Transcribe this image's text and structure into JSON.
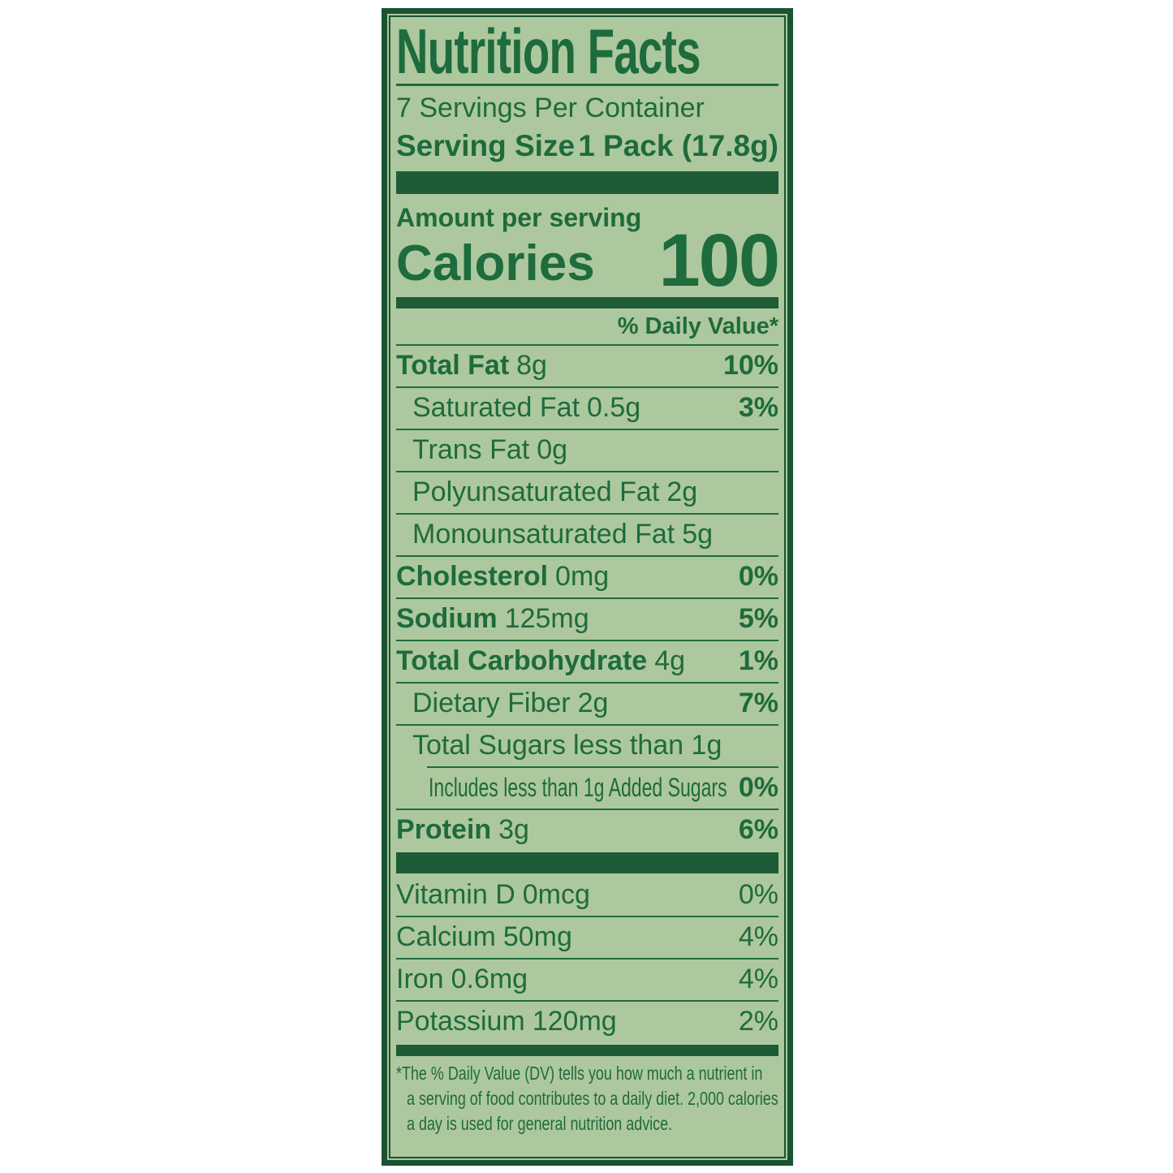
{
  "colors": {
    "page_background": "#ffffff",
    "panel_green": "#adc89e",
    "ink_green": "#1e6b3d",
    "bar_green": "#1d5c36",
    "frame_green": "#1a5331"
  },
  "label": {
    "title": "Nutrition Facts",
    "servings_per_container": "7 Servings Per Container",
    "serving_size_label": "Serving Size",
    "serving_size_value": "1 Pack (17.8g)",
    "amount_per_serving": "Amount per serving",
    "calories_label": "Calories",
    "calories_value": "100",
    "daily_value_header": "% Daily Value*",
    "rows": [
      {
        "name": "Total Fat",
        "amount": "8g",
        "dv": "10%"
      },
      {
        "name": "Saturated Fat",
        "amount": "0.5g",
        "dv": "3%"
      },
      {
        "name": "Trans Fat",
        "amount": "0g",
        "dv": ""
      },
      {
        "name": "Polyunsaturated Fat",
        "amount": "2g",
        "dv": ""
      },
      {
        "name": "Monounsaturated Fat",
        "amount": "5g",
        "dv": ""
      },
      {
        "name": "Cholesterol",
        "amount": "0mg",
        "dv": "0%"
      },
      {
        "name": "Sodium",
        "amount": "125mg",
        "dv": "5%"
      },
      {
        "name": "Total Carbohydrate",
        "amount": "4g",
        "dv": "1%"
      },
      {
        "name": "Dietary Fiber",
        "amount": "2g",
        "dv": "7%"
      },
      {
        "name": "Total Sugars",
        "amount": "less than 1g",
        "dv": ""
      },
      {
        "name": "Includes less than 1g Added Sugars",
        "amount": "",
        "dv": "0%"
      },
      {
        "name": "Protein",
        "amount": "3g",
        "dv": "6%"
      }
    ],
    "vitamin_rows": [
      {
        "name": "Vitamin D",
        "amount": "0mcg",
        "dv": "0%"
      },
      {
        "name": "Calcium",
        "amount": "50mg",
        "dv": "4%"
      },
      {
        "name": "Iron",
        "amount": "0.6mg",
        "dv": "4%"
      },
      {
        "name": "Potassium",
        "amount": "120mg",
        "dv": "2%"
      }
    ],
    "footnote_lines": [
      "*The % Daily Value (DV) tells you how much a nutrient in",
      "a serving of food contributes to a daily diet. 2,000 calories",
      "a day is used for general nutrition advice."
    ]
  }
}
